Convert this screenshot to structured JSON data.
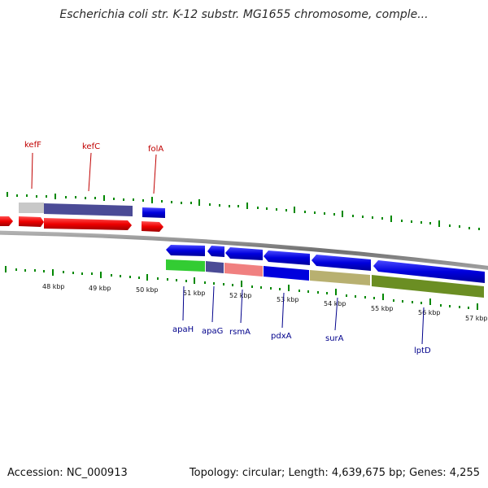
{
  "title": "Escherichia coli str. K-12 substr. MG1655 chromosome, comple...",
  "footer": {
    "accession": "Accession: NC_000913",
    "summary": "Topology: circular; Length: 4,639,675 bp; Genes: 4,255"
  },
  "colors": {
    "forward_gene": "#ee0000",
    "reverse_gene": "#0000dd",
    "tick": "#008800",
    "backbone": "#808080"
  },
  "kbp_labels": [
    "48 kbp",
    "49 kbp",
    "50 kbp",
    "51 kbp",
    "52 kbp",
    "53 kbp",
    "54 kbp",
    "55 kbp",
    "56 kbp",
    "57 kbp"
  ],
  "top_gene_labels": [
    "kefF",
    "kefC",
    "folA"
  ],
  "bottom_gene_labels": [
    "apaH",
    "apaG",
    "rsmA",
    "pdxA",
    "surA",
    "lptD"
  ]
}
